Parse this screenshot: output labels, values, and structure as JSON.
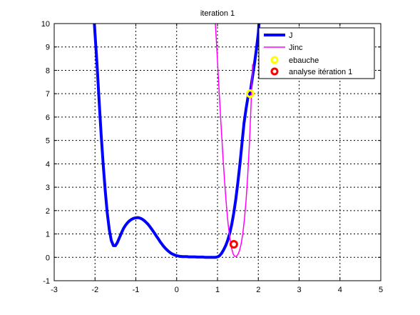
{
  "chart_data": {
    "type": "line",
    "title": "iteration 1",
    "xlabel": "",
    "ylabel": "",
    "xlim": [
      -3,
      5
    ],
    "ylim": [
      -1,
      10
    ],
    "x_ticks": [
      -3,
      -2,
      -1,
      0,
      1,
      2,
      3,
      4,
      5
    ],
    "y_ticks": [
      -1,
      0,
      1,
      2,
      3,
      4,
      5,
      6,
      7,
      8,
      9,
      10
    ],
    "grid": true,
    "legend_position": "top-right",
    "colors": {
      "J": "#0000ff",
      "Jinc": "#ff00ff",
      "ebauche": "#ffff00",
      "analyse": "#ff0000"
    },
    "series": [
      {
        "name": "J",
        "kind": "line",
        "x": [
          -2.02,
          -1.95,
          -1.9,
          -1.85,
          -1.8,
          -1.75,
          -1.7,
          -1.65,
          -1.6,
          -1.55,
          -1.5,
          -1.45,
          -1.4,
          -1.35,
          -1.3,
          -1.25,
          -1.2,
          -1.15,
          -1.1,
          -1.05,
          -1.0,
          -0.95,
          -0.9,
          -0.85,
          -0.8,
          -0.75,
          -0.7,
          -0.65,
          -0.6,
          -0.55,
          -0.5,
          -0.45,
          -0.4,
          -0.35,
          -0.3,
          -0.25,
          -0.2,
          -0.15,
          -0.1,
          -0.05,
          0.0,
          0.05,
          0.1,
          0.15,
          0.2,
          0.25,
          0.3,
          0.35,
          0.4,
          0.45,
          0.5,
          0.55,
          0.6,
          0.65,
          0.7,
          0.75,
          0.8,
          0.85,
          0.9,
          0.95,
          1.0,
          1.05,
          1.1,
          1.15,
          1.2,
          1.25,
          1.3,
          1.35,
          1.4,
          1.45,
          1.5,
          1.55,
          1.6,
          1.65,
          1.7,
          1.75,
          1.8,
          1.85,
          1.9,
          1.95,
          2.0,
          2.02
        ],
        "y": [
          10.1,
          8.23,
          6.69,
          5.27,
          3.98,
          2.84,
          1.9,
          1.18,
          0.72,
          0.5,
          0.5,
          0.64,
          0.85,
          1.06,
          1.24,
          1.38,
          1.49,
          1.57,
          1.63,
          1.67,
          1.69,
          1.7,
          1.68,
          1.64,
          1.58,
          1.5,
          1.41,
          1.3,
          1.18,
          1.05,
          0.92,
          0.79,
          0.66,
          0.54,
          0.43,
          0.34,
          0.26,
          0.19,
          0.14,
          0.1,
          0.07,
          0.05,
          0.04,
          0.03,
          0.03,
          0.03,
          0.02,
          0.02,
          0.02,
          0.02,
          0.01,
          0.01,
          0.01,
          0.01,
          0.0,
          0.0,
          0.0,
          0.0,
          0.0,
          0.0,
          0.02,
          0.07,
          0.17,
          0.32,
          0.5,
          0.73,
          1.03,
          1.41,
          1.91,
          2.51,
          3.21,
          4.0,
          4.86,
          5.74,
          6.36,
          6.88,
          7.03,
          7.64,
          8.21,
          8.86,
          9.6,
          10.1
        ]
      },
      {
        "name": "Jinc",
        "kind": "line",
        "x": [
          0.94,
          0.98,
          1.02,
          1.06,
          1.1,
          1.14,
          1.18,
          1.22,
          1.26,
          1.3,
          1.34,
          1.38,
          1.42,
          1.46,
          1.5,
          1.54,
          1.58,
          1.62,
          1.66,
          1.7,
          1.74,
          1.78,
          1.82,
          1.86
        ],
        "y": [
          10.2,
          9.02,
          7.77,
          6.51,
          5.29,
          4.14,
          3.1,
          2.19,
          1.43,
          0.84,
          0.42,
          0.16,
          0.04,
          0.04,
          0.12,
          0.29,
          0.58,
          1.01,
          1.63,
          2.45,
          3.51,
          4.82,
          6.4,
          8.25
        ]
      },
      {
        "name": "ebauche",
        "kind": "marker",
        "marker": "circle",
        "x": [
          1.8
        ],
        "y": [
          7.0
        ]
      },
      {
        "name": "analyse itération 1",
        "kind": "marker",
        "marker": "circle",
        "x": [
          1.4
        ],
        "y": [
          0.56
        ]
      }
    ],
    "legend": [
      "J",
      "Jinc",
      "ebauche",
      "analyse itération 1"
    ]
  }
}
